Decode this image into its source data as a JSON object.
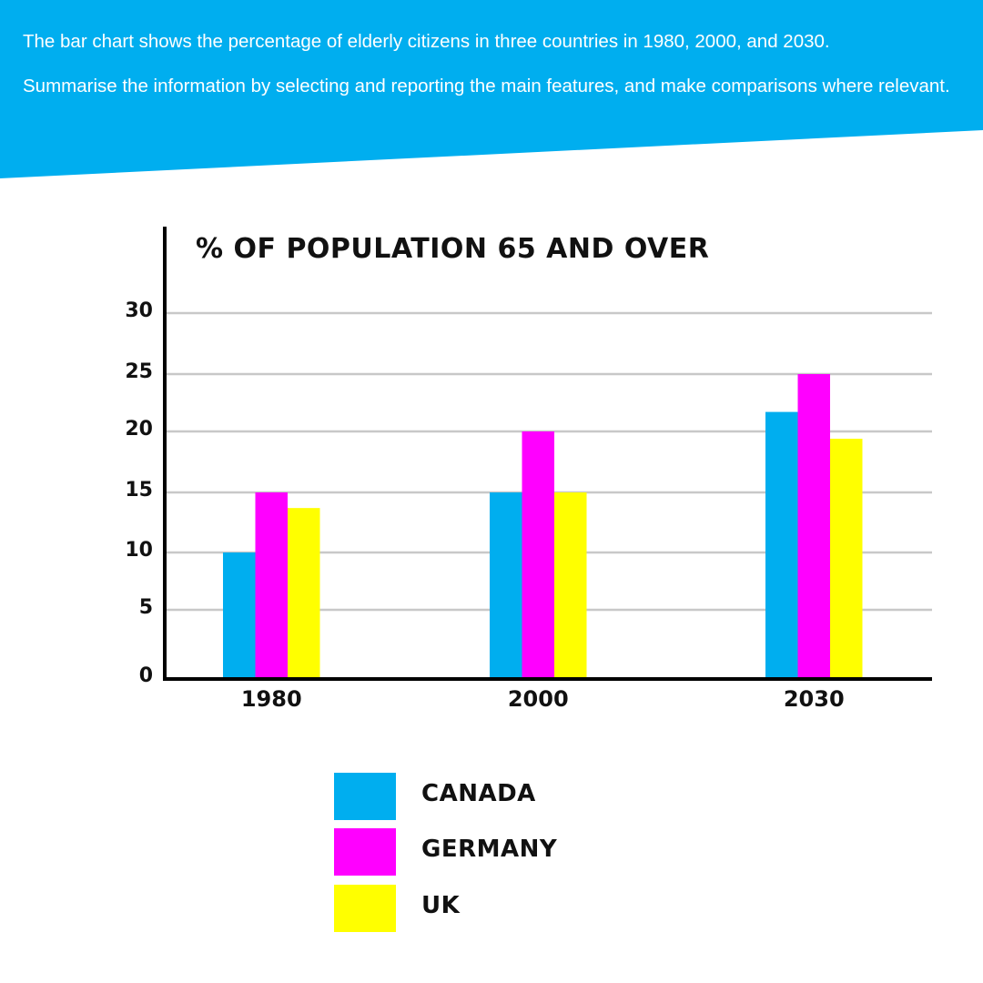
{
  "prompt": {
    "line1": "The bar chart shows the percentage of elderly citizens in three countries in 1980, 2000, and 2030.",
    "line2": "Summarise the information by selecting and reporting the main features, and make comparisons where relevant."
  },
  "colors": {
    "banner": "#00AEEF",
    "canada": "#00AEEF",
    "germany": "#FF00FF",
    "uk": "#FFFF00",
    "grid": "#C8C8C8",
    "axis": "#000000"
  },
  "chart_data": {
    "type": "bar",
    "title": "% OF POPULATION 65 AND OVER",
    "xlabel": "",
    "ylabel": "",
    "categories": [
      "1980",
      "2000",
      "2030"
    ],
    "series": [
      {
        "name": "CANADA",
        "values": [
          10,
          15,
          21.7
        ]
      },
      {
        "name": "GERMANY",
        "values": [
          15,
          20,
          25
        ]
      },
      {
        "name": "UK",
        "values": [
          13.7,
          15,
          19.4
        ]
      }
    ],
    "yticks": [
      "0",
      "5",
      "10",
      "15",
      "20",
      "25",
      "30"
    ],
    "ylim": [
      0,
      30
    ],
    "grid": true,
    "legend_position": "bottom"
  },
  "legend": [
    {
      "label": "CANADA"
    },
    {
      "label": "GERMANY"
    },
    {
      "label": "UK"
    }
  ]
}
